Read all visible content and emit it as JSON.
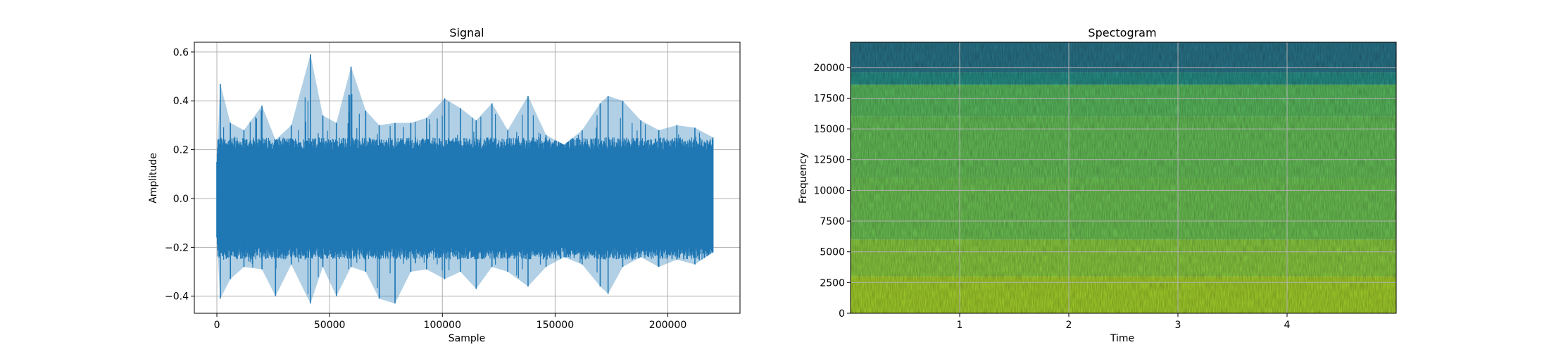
{
  "chart_data": [
    {
      "type": "line",
      "title": "Signal",
      "xlabel": "Sample",
      "ylabel": "Amplitude",
      "xlim": [
        -10000,
        232000
      ],
      "ylim": [
        -0.47,
        0.64
      ],
      "x_ticks": [
        0,
        50000,
        100000,
        150000,
        200000
      ],
      "x_tick_labels": [
        "0",
        "50000",
        "100000",
        "150000",
        "200000"
      ],
      "y_ticks": [
        -0.4,
        -0.2,
        0.0,
        0.2,
        0.4,
        0.6
      ],
      "y_tick_labels": [
        "−0.4",
        "−0.2",
        "0.0",
        "0.2",
        "0.4",
        "0.6"
      ],
      "grid": true,
      "color": "#1f77b4",
      "series": [
        {
          "x": [
            0,
            1500,
            6000,
            12000,
            20000,
            26000,
            33000,
            41500,
            47000,
            53000,
            59500,
            66000,
            72000,
            79000,
            86000,
            93000,
            101000,
            108000,
            115000,
            122000,
            129000,
            138000,
            146000,
            154000,
            162000,
            170000,
            173500,
            180000,
            188000,
            196000,
            204000,
            212000,
            220000
          ],
          "max": [
            0.15,
            0.47,
            0.31,
            0.28,
            0.38,
            0.24,
            0.3,
            0.59,
            0.34,
            0.31,
            0.54,
            0.36,
            0.3,
            0.31,
            0.31,
            0.33,
            0.41,
            0.37,
            0.32,
            0.39,
            0.28,
            0.42,
            0.26,
            0.22,
            0.28,
            0.39,
            0.42,
            0.4,
            0.32,
            0.28,
            0.3,
            0.29,
            0.25
          ],
          "min": [
            -0.16,
            -0.41,
            -0.33,
            -0.28,
            -0.29,
            -0.4,
            -0.27,
            -0.43,
            -0.28,
            -0.4,
            -0.28,
            -0.3,
            -0.41,
            -0.43,
            -0.3,
            -0.29,
            -0.33,
            -0.3,
            -0.37,
            -0.28,
            -0.3,
            -0.36,
            -0.28,
            -0.24,
            -0.27,
            -0.36,
            -0.39,
            -0.28,
            -0.24,
            -0.28,
            -0.25,
            -0.27,
            -0.22
          ]
        }
      ]
    },
    {
      "type": "heatmap",
      "title": "Spectogram",
      "xlabel": "Time",
      "ylabel": "Frequency",
      "xlim": [
        0,
        5
      ],
      "ylim": [
        0,
        22050
      ],
      "x_ticks": [
        1,
        2,
        3,
        4
      ],
      "x_tick_labels": [
        "1",
        "2",
        "3",
        "4"
      ],
      "y_ticks": [
        0,
        2500,
        5000,
        7500,
        10000,
        12500,
        15000,
        17500,
        20000
      ],
      "y_tick_labels": [
        "0",
        "2500",
        "5000",
        "7500",
        "10000",
        "12500",
        "15000",
        "17500",
        "20000"
      ],
      "grid": true,
      "colormap": "viridis",
      "frequency_bands": [
        {
          "from": 0,
          "to": 3000,
          "color": "#a8d62c"
        },
        {
          "from": 3000,
          "to": 6000,
          "color": "#8dd041"
        },
        {
          "from": 6000,
          "to": 11000,
          "color": "#6fc755"
        },
        {
          "from": 11000,
          "to": 16000,
          "color": "#68c45a"
        },
        {
          "from": 16000,
          "to": 18600,
          "color": "#5cbf60"
        },
        {
          "from": 18600,
          "to": 19600,
          "color": "#27938a"
        },
        {
          "from": 19600,
          "to": 22050,
          "color": "#2a788e"
        }
      ]
    }
  ]
}
